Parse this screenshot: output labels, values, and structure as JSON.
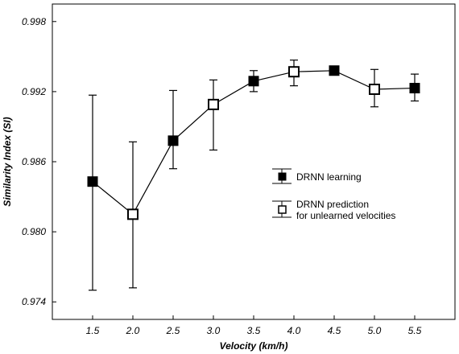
{
  "chart_data": {
    "type": "line",
    "xlabel": "Velocity (km/h)",
    "ylabel": "Similarity Index (SI)",
    "x_ticks": [
      "1.5",
      "2.0",
      "2.5",
      "3.0",
      "3.5",
      "4.0",
      "4.5",
      "5.0",
      "5.5"
    ],
    "y_ticks": [
      "0.974",
      "0.980",
      "0.986",
      "0.992",
      "0.998"
    ],
    "xlim": [
      1.0,
      6.0
    ],
    "ylim": [
      0.9725,
      0.9995
    ],
    "grid": false,
    "legend_position": "right-middle",
    "legend": {
      "learning": "DRNN learning",
      "prediction_line1": "DRNN prediction",
      "prediction_line2": "for unlearned velocities"
    },
    "points": [
      {
        "x": 1.5,
        "y": 0.9843,
        "upper": 0.9917,
        "lower": 0.975,
        "type": "learning"
      },
      {
        "x": 2.0,
        "y": 0.9815,
        "upper": 0.9877,
        "lower": 0.9752,
        "type": "prediction"
      },
      {
        "x": 2.5,
        "y": 0.9878,
        "upper": 0.9921,
        "lower": 0.9854,
        "type": "learning"
      },
      {
        "x": 3.0,
        "y": 0.9909,
        "upper": 0.993,
        "lower": 0.987,
        "type": "prediction"
      },
      {
        "x": 3.5,
        "y": 0.9929,
        "upper": 0.9938,
        "lower": 0.992,
        "type": "learning"
      },
      {
        "x": 4.0,
        "y": 0.9937,
        "upper": 0.9947,
        "lower": 0.9925,
        "type": "prediction"
      },
      {
        "x": 4.5,
        "y": 0.9938,
        "upper": 0.994,
        "lower": 0.9935,
        "type": "learning"
      },
      {
        "x": 5.0,
        "y": 0.9922,
        "upper": 0.9939,
        "lower": 0.9907,
        "type": "prediction"
      },
      {
        "x": 5.5,
        "y": 0.9923,
        "upper": 0.9935,
        "lower": 0.9912,
        "type": "learning"
      }
    ],
    "colors": {
      "line": "#000000",
      "learning_fill": "#000000",
      "prediction_fill": "#ffffff"
    }
  }
}
